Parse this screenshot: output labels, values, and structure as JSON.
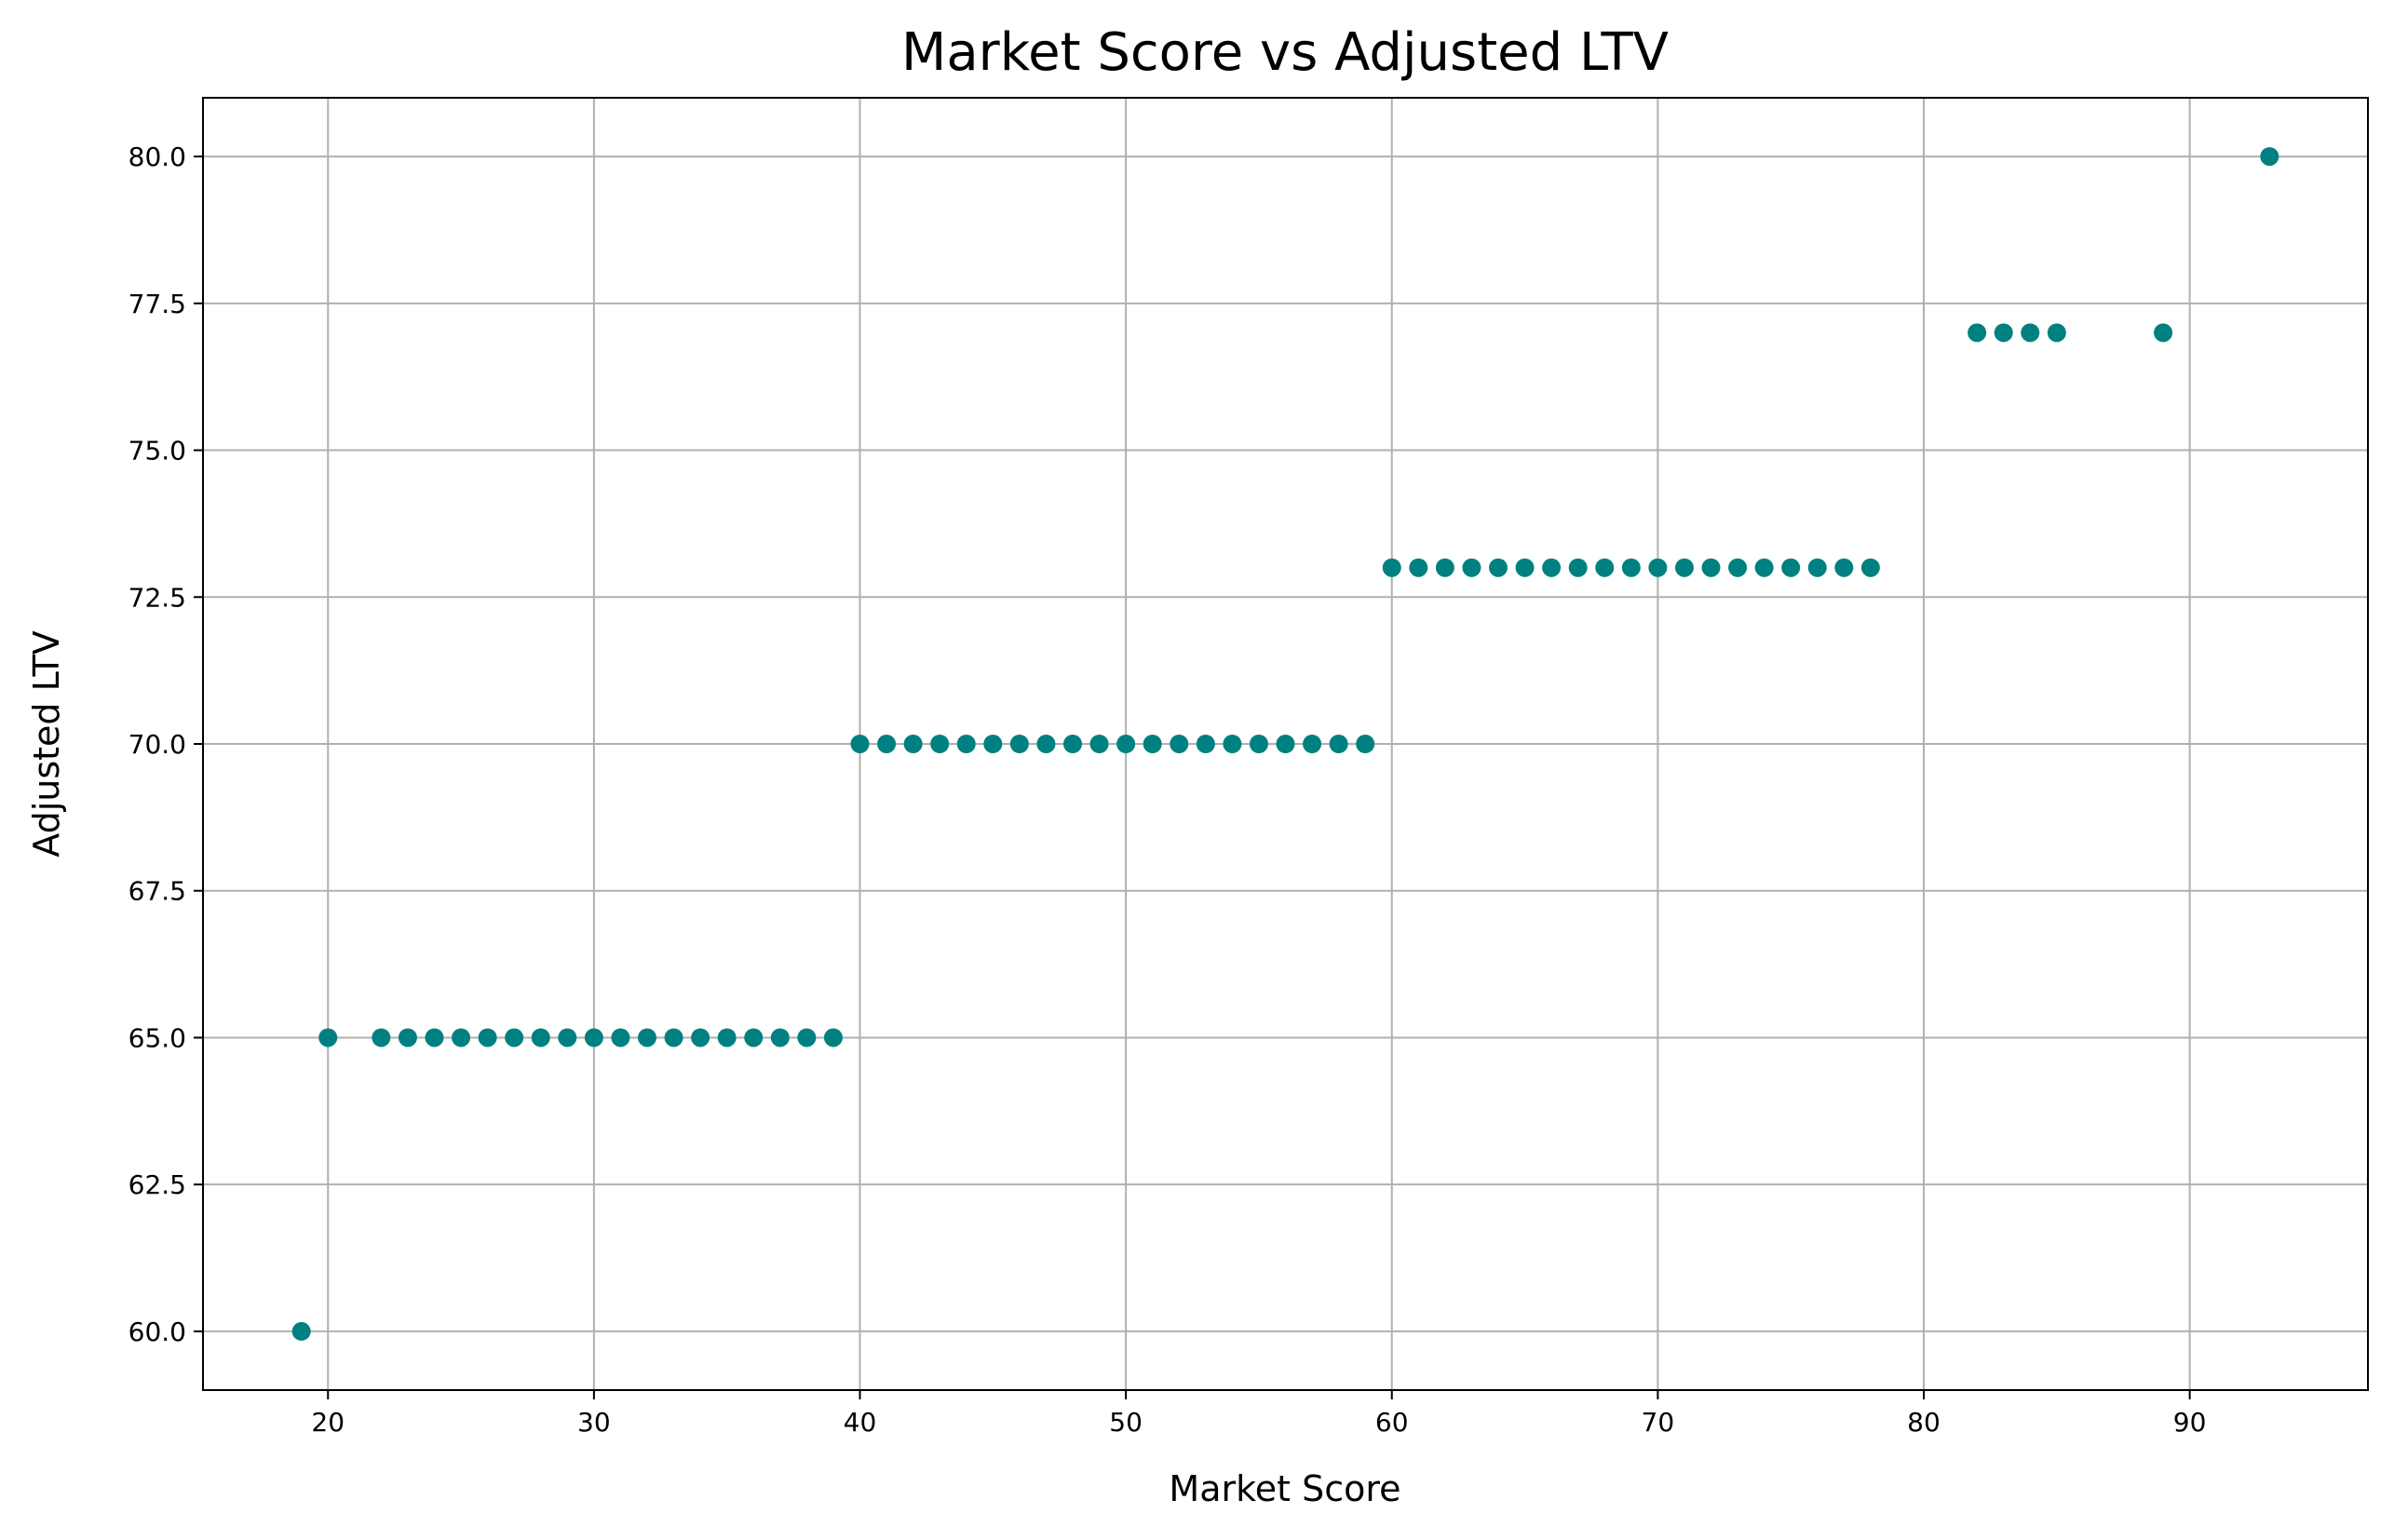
{
  "chart_data": {
    "type": "scatter",
    "title": "Market Score vs Adjusted LTV",
    "xlabel": "Market Score",
    "ylabel": "Adjusted LTV",
    "xlim": [
      15.3,
      96.7
    ],
    "ylim": [
      59.0,
      81.0
    ],
    "xticks": [
      20,
      30,
      40,
      50,
      60,
      70,
      80,
      90
    ],
    "yticks": [
      60.0,
      62.5,
      65.0,
      67.5,
      70.0,
      72.5,
      75.0,
      77.5,
      80.0
    ],
    "xtick_labels": [
      "20",
      "30",
      "40",
      "50",
      "60",
      "70",
      "80",
      "90"
    ],
    "ytick_labels": [
      "60.0",
      "62.5",
      "65.0",
      "67.5",
      "70.0",
      "72.5",
      "75.0",
      "77.5",
      "80.0"
    ],
    "grid": true,
    "marker_color": "#008080",
    "points": [
      {
        "x": 19,
        "y": 60
      },
      {
        "x": 20,
        "y": 65
      },
      {
        "x": 22,
        "y": 65
      },
      {
        "x": 23,
        "y": 65
      },
      {
        "x": 24,
        "y": 65
      },
      {
        "x": 25,
        "y": 65
      },
      {
        "x": 26,
        "y": 65
      },
      {
        "x": 27,
        "y": 65
      },
      {
        "x": 28,
        "y": 65
      },
      {
        "x": 29,
        "y": 65
      },
      {
        "x": 30,
        "y": 65
      },
      {
        "x": 31,
        "y": 65
      },
      {
        "x": 32,
        "y": 65
      },
      {
        "x": 33,
        "y": 65
      },
      {
        "x": 34,
        "y": 65
      },
      {
        "x": 35,
        "y": 65
      },
      {
        "x": 36,
        "y": 65
      },
      {
        "x": 37,
        "y": 65
      },
      {
        "x": 38,
        "y": 65
      },
      {
        "x": 39,
        "y": 65
      },
      {
        "x": 40,
        "y": 70
      },
      {
        "x": 41,
        "y": 70
      },
      {
        "x": 42,
        "y": 70
      },
      {
        "x": 43,
        "y": 70
      },
      {
        "x": 44,
        "y": 70
      },
      {
        "x": 45,
        "y": 70
      },
      {
        "x": 46,
        "y": 70
      },
      {
        "x": 47,
        "y": 70
      },
      {
        "x": 48,
        "y": 70
      },
      {
        "x": 49,
        "y": 70
      },
      {
        "x": 50,
        "y": 70
      },
      {
        "x": 51,
        "y": 70
      },
      {
        "x": 52,
        "y": 70
      },
      {
        "x": 53,
        "y": 70
      },
      {
        "x": 54,
        "y": 70
      },
      {
        "x": 55,
        "y": 70
      },
      {
        "x": 56,
        "y": 70
      },
      {
        "x": 57,
        "y": 70
      },
      {
        "x": 58,
        "y": 70
      },
      {
        "x": 59,
        "y": 70
      },
      {
        "x": 60,
        "y": 73
      },
      {
        "x": 61,
        "y": 73
      },
      {
        "x": 62,
        "y": 73
      },
      {
        "x": 63,
        "y": 73
      },
      {
        "x": 64,
        "y": 73
      },
      {
        "x": 65,
        "y": 73
      },
      {
        "x": 66,
        "y": 73
      },
      {
        "x": 67,
        "y": 73
      },
      {
        "x": 68,
        "y": 73
      },
      {
        "x": 69,
        "y": 73
      },
      {
        "x": 70,
        "y": 73
      },
      {
        "x": 71,
        "y": 73
      },
      {
        "x": 72,
        "y": 73
      },
      {
        "x": 73,
        "y": 73
      },
      {
        "x": 74,
        "y": 73
      },
      {
        "x": 75,
        "y": 73
      },
      {
        "x": 76,
        "y": 73
      },
      {
        "x": 77,
        "y": 73
      },
      {
        "x": 78,
        "y": 73
      },
      {
        "x": 82,
        "y": 77
      },
      {
        "x": 83,
        "y": 77
      },
      {
        "x": 84,
        "y": 77
      },
      {
        "x": 85,
        "y": 77
      },
      {
        "x": 89,
        "y": 77
      },
      {
        "x": 93,
        "y": 80
      }
    ]
  }
}
